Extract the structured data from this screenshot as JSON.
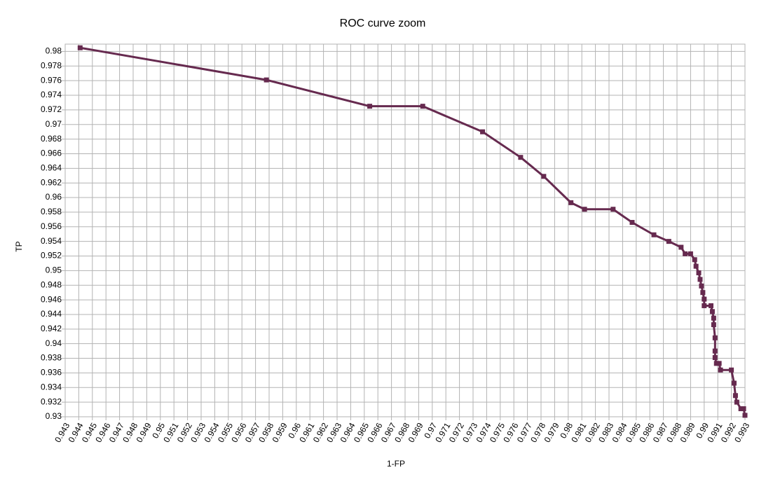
{
  "chart_data": {
    "type": "line",
    "title": "ROC curve zoom",
    "x_label": "1-FP",
    "y_label": "TP",
    "grid": true,
    "xlim": [
      0.943,
      0.993
    ],
    "xticks": [
      0.943,
      0.944,
      0.945,
      0.946,
      0.947,
      0.948,
      0.949,
      0.95,
      0.951,
      0.952,
      0.953,
      0.954,
      0.955,
      0.956,
      0.957,
      0.958,
      0.959,
      0.96,
      0.961,
      0.962,
      0.963,
      0.964,
      0.965,
      0.966,
      0.967,
      0.968,
      0.969,
      0.97,
      0.971,
      0.972,
      0.973,
      0.974,
      0.975,
      0.976,
      0.977,
      0.978,
      0.979,
      0.98,
      0.981,
      0.982,
      0.983,
      0.984,
      0.985,
      0.986,
      0.987,
      0.988,
      0.989,
      0.99,
      0.991,
      0.992,
      0.993
    ],
    "ylim": [
      0.93,
      0.981
    ],
    "yticks": [
      0.93,
      0.932,
      0.934,
      0.936,
      0.938,
      0.94,
      0.942,
      0.944,
      0.946,
      0.948,
      0.95,
      0.952,
      0.954,
      0.956,
      0.958,
      0.96,
      0.962,
      0.964,
      0.966,
      0.968,
      0.97,
      0.972,
      0.974,
      0.976,
      0.978,
      0.98
    ],
    "x": [
      0.9441,
      0.9578,
      0.9654,
      0.9693,
      0.9737,
      0.9765,
      0.9782,
      0.9802,
      0.9812,
      0.9833,
      0.9847,
      0.9863,
      0.9874,
      0.9883,
      0.9886,
      0.989,
      0.9893,
      0.9894,
      0.9896,
      0.9897,
      0.9898,
      0.9899,
      0.99,
      0.99,
      0.9905,
      0.9906,
      0.9907,
      0.9907,
      0.9908,
      0.9908,
      0.9908,
      0.9909,
      0.9911,
      0.9912,
      0.992,
      0.9922,
      0.9923,
      0.9924,
      0.9927,
      0.9929,
      0.993
    ],
    "series": [
      {
        "color": "#662a4f",
        "values": [
          0.9805,
          0.9761,
          0.9725,
          0.9725,
          0.969,
          0.9655,
          0.9629,
          0.9593,
          0.9584,
          0.9584,
          0.9566,
          0.9549,
          0.954,
          0.9532,
          0.9523,
          0.9523,
          0.9515,
          0.9506,
          0.9497,
          0.9488,
          0.9479,
          0.947,
          0.9461,
          0.9452,
          0.9452,
          0.9444,
          0.9435,
          0.9426,
          0.9408,
          0.939,
          0.9381,
          0.9373,
          0.9373,
          0.9364,
          0.9364,
          0.9346,
          0.9329,
          0.932,
          0.9311,
          0.9311,
          0.9302
        ]
      }
    ]
  }
}
